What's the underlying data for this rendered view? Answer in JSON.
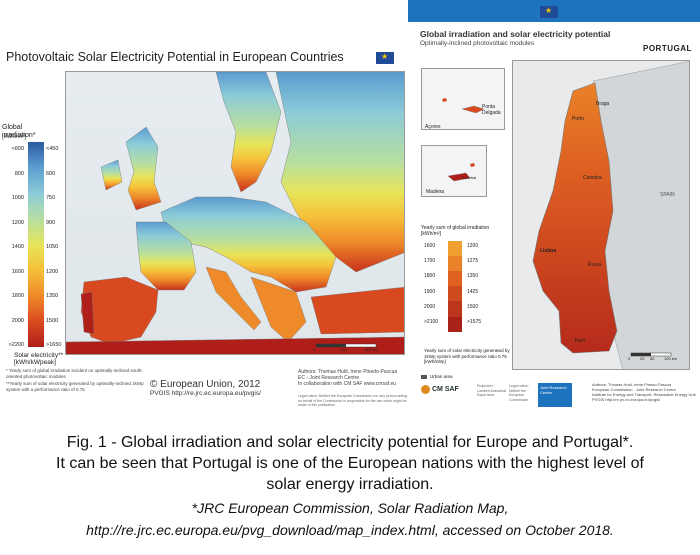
{
  "europe": {
    "title": "Photovoltaic Solar Electricity Potential in European Countries",
    "legend_title": "Global irradiation*",
    "legend_units": "[kWh/m²]",
    "legend_left": [
      "<600",
      "800",
      "1000",
      "1200",
      "1400",
      "1600",
      "1800",
      "2000",
      ">2200"
    ],
    "legend_right": [
      "<450",
      "600",
      "750",
      "900",
      "1050",
      "1200",
      "1350",
      "1500",
      ">1650"
    ],
    "solar_label": "Solar electricity**",
    "solar_units": "[kWh/kWpeak]",
    "note1": "* Yearly sum of global irradiation incident on optimally-inclined south-oriented photovoltaic modules",
    "note2": "**Yearly sum of solar electricity generated by optimally-inclined 1kWp system with a performance ratio of 0.75",
    "copyright": "© European Union, 2012",
    "pvgis": "PVGIS http://re.jrc.ec.europa.eu/pvgis/",
    "authors": "Authors: Thomas Huld, Irene Pinedo-Pascua",
    "authors2": "EC - Joint Research Centre",
    "authors3": "In collaboration with CM SAF www.cmsaf.eu",
    "legal": "Legal notice: Neither the European Commission nor any person acting on behalf of the Commission is responsible for the use which might be made of this publication",
    "scale": [
      "0",
      "400",
      "800 km"
    ],
    "colors": [
      "#2c5aa0",
      "#5a9bd0",
      "#8ccbd8",
      "#b7dfa0",
      "#e6e55a",
      "#f5c23a",
      "#ef8a2a",
      "#d9491f",
      "#b01e1a"
    ]
  },
  "portugal": {
    "title": "Global irradiation and solar electricity potential",
    "subtitle": "Optimally-inclined photovoltaic modules",
    "country": "PORTUGAL",
    "azores": "Açores",
    "ponta_delgada": "Ponta Delgada",
    "madeira": "Madeira",
    "funchal": "Funchal",
    "cities": [
      "Braga",
      "Porto",
      "Coimbra",
      "Lisboa",
      "Faro",
      "Évora"
    ],
    "spain": "SPAIN",
    "legend_title": "Yearly sum of global irradiation",
    "legend_units": "[kWh/m²]",
    "legend_left": [
      "1600",
      "1700",
      "1800",
      "1900",
      "2000",
      ">2100"
    ],
    "legend_right": [
      "1200",
      "1275",
      "1350",
      "1425",
      "1500",
      ">1575"
    ],
    "solar_label": "Yearly sum of solar electricity generated by 1kWp system with performance ratio 0.75",
    "solar_units": "[kWh/kWp]",
    "urban": "Urban area",
    "cmsaf": "CM SAF",
    "jrc": "Joint Research Centre",
    "authors": "Authors: Thomas Huld, Irene Pinedo-Pascua",
    "authors2": "European Commission - Joint Research Centre",
    "authors3": "Institute for Energy and Transport, Renewable Energy Unit",
    "authors4": "PVGIS http://re.jrc.ec.europa.eu/pvgis/",
    "small1": "Projection: Lambert Azimuthal Equal Area",
    "small2": "Legal notice: Neither the European Commission",
    "scale": [
      "0",
      "25",
      "50",
      "100 km"
    ],
    "colors": [
      "#f0a030",
      "#e98228",
      "#df6223",
      "#cf4a1f",
      "#bd351c",
      "#a8221a"
    ]
  },
  "caption": {
    "line1": "Fig. 1 - Global irradiation and solar electricity potential for Europe and Portugal*.",
    "line2": "It can be seen that Portugal is one of the European nations with the highest level of",
    "line3": "solar energy irradiation.",
    "source1": "*JRC European Commission, Solar Radiation Map,",
    "source2": "http://re.jrc.ec.europa.eu/pvg_download/map_index.html, accessed on October 2018."
  }
}
